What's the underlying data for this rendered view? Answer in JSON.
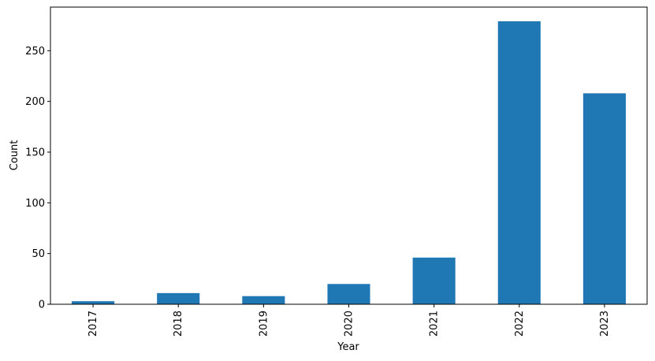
{
  "chart_data": {
    "type": "bar",
    "categories": [
      "2017",
      "2018",
      "2019",
      "2020",
      "2021",
      "2022",
      "2023"
    ],
    "values": [
      3,
      11,
      8,
      20,
      46,
      279,
      208
    ],
    "title": "",
    "xlabel": "Year",
    "ylabel": "Count",
    "ylim": [
      0,
      293
    ],
    "yticks": [
      0,
      50,
      100,
      150,
      200,
      250
    ],
    "x_tick_rotation": "vertical",
    "grid": false,
    "legend": "none",
    "bar_color": "#1f77b4"
  }
}
